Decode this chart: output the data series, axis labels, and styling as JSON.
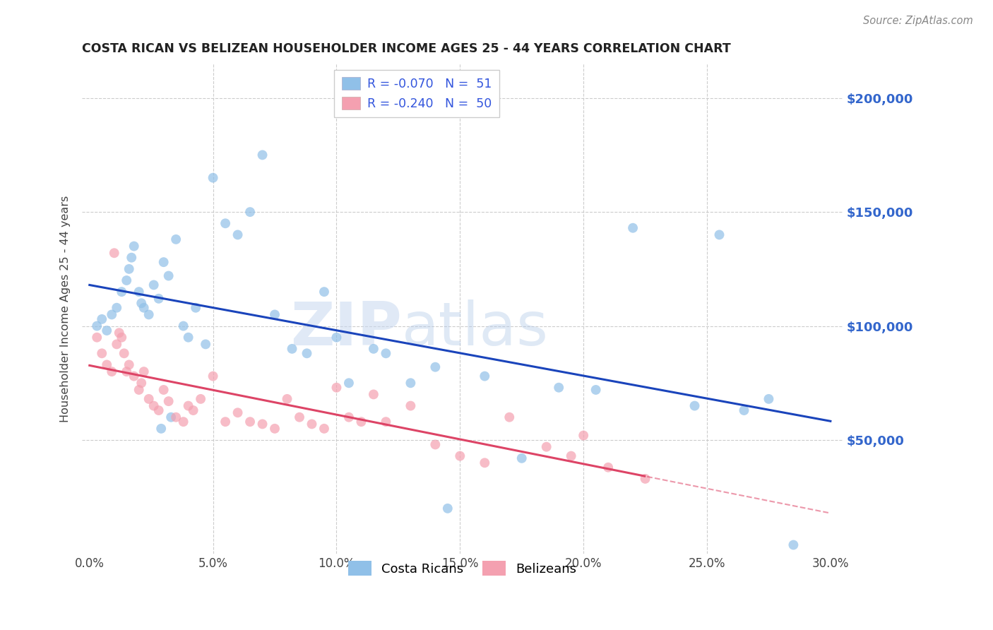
{
  "title": "COSTA RICAN VS BELIZEAN HOUSEHOLDER INCOME AGES 25 - 44 YEARS CORRELATION CHART",
  "source": "Source: ZipAtlas.com",
  "ylabel": "Householder Income Ages 25 - 44 years",
  "ytick_labels": [
    "$50,000",
    "$100,000",
    "$150,000",
    "$200,000"
  ],
  "ytick_vals": [
    50000,
    100000,
    150000,
    200000
  ],
  "ylim": [
    0,
    215000
  ],
  "xlim": [
    -0.3,
    30.5
  ],
  "blue_color": "#90c0e8",
  "pink_color": "#f4a0b0",
  "blue_line_color": "#1a44bb",
  "pink_line_color": "#dd4466",
  "watermark_zip": "ZIP",
  "watermark_atlas": "atlas",
  "legend_blue_label": "R = -0.070   N =  51",
  "legend_pink_label": "R = -0.240   N =  50",
  "legend_text_color": "#3355dd",
  "bottom_legend_blue": "Costa Ricans",
  "bottom_legend_pink": "Belizeans",
  "costa_rican_x": [
    0.3,
    0.5,
    0.7,
    0.9,
    1.1,
    1.3,
    1.5,
    1.6,
    1.7,
    1.8,
    2.0,
    2.1,
    2.2,
    2.4,
    2.6,
    2.8,
    3.0,
    3.2,
    3.5,
    3.8,
    4.0,
    4.3,
    4.7,
    5.0,
    5.5,
    6.0,
    6.5,
    7.0,
    7.5,
    8.2,
    8.8,
    9.5,
    10.0,
    10.5,
    11.5,
    12.0,
    13.0,
    14.5,
    16.0,
    17.5,
    19.0,
    20.5,
    22.0,
    24.5,
    25.5,
    26.5,
    27.5,
    28.5,
    14.0,
    3.3,
    2.9
  ],
  "costa_rican_y": [
    100000,
    103000,
    98000,
    105000,
    108000,
    115000,
    120000,
    125000,
    130000,
    135000,
    115000,
    110000,
    108000,
    105000,
    118000,
    112000,
    128000,
    122000,
    138000,
    100000,
    95000,
    108000,
    92000,
    165000,
    145000,
    140000,
    150000,
    175000,
    105000,
    90000,
    88000,
    115000,
    95000,
    75000,
    90000,
    88000,
    75000,
    20000,
    78000,
    42000,
    73000,
    72000,
    143000,
    65000,
    140000,
    63000,
    68000,
    4000,
    82000,
    60000,
    55000
  ],
  "belizean_x": [
    0.3,
    0.5,
    0.7,
    0.9,
    1.0,
    1.1,
    1.2,
    1.4,
    1.5,
    1.6,
    1.8,
    2.0,
    2.1,
    2.2,
    2.4,
    2.6,
    2.8,
    3.0,
    3.2,
    3.5,
    3.8,
    4.0,
    4.2,
    4.5,
    5.0,
    5.5,
    6.0,
    6.5,
    7.0,
    7.5,
    8.0,
    8.5,
    9.0,
    9.5,
    10.0,
    10.5,
    11.0,
    11.5,
    12.0,
    13.0,
    14.0,
    15.0,
    16.0,
    17.0,
    18.5,
    19.5,
    20.0,
    21.0,
    22.5,
    1.3
  ],
  "belizean_y": [
    95000,
    88000,
    83000,
    80000,
    132000,
    92000,
    97000,
    88000,
    80000,
    83000,
    78000,
    72000,
    75000,
    80000,
    68000,
    65000,
    63000,
    72000,
    67000,
    60000,
    58000,
    65000,
    63000,
    68000,
    78000,
    58000,
    62000,
    58000,
    57000,
    55000,
    68000,
    60000,
    57000,
    55000,
    73000,
    60000,
    58000,
    70000,
    58000,
    65000,
    48000,
    43000,
    40000,
    60000,
    47000,
    43000,
    52000,
    38000,
    33000,
    95000
  ]
}
